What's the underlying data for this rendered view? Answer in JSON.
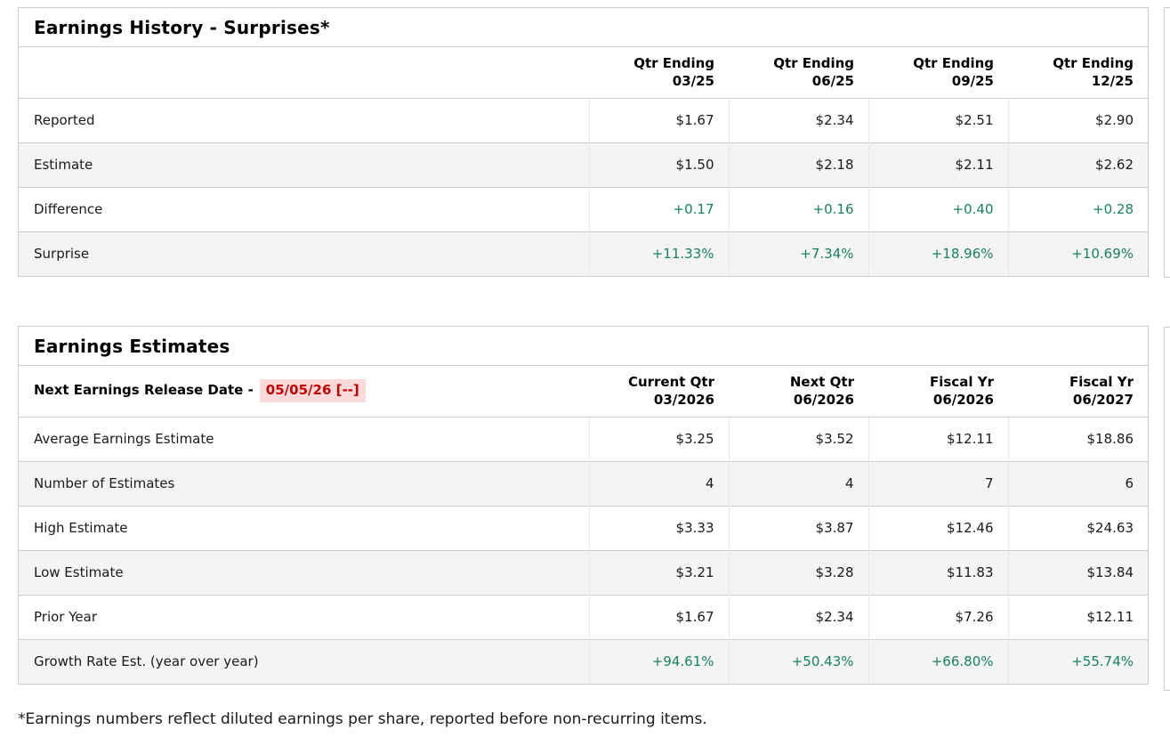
{
  "colors": {
    "positive": "#17805f",
    "alert_text": "#c40000",
    "alert_bg": "#fcdada",
    "stripe": "#f4f4f4",
    "border": "#cccccc"
  },
  "earnings_history": {
    "title": "Earnings History - Surprises*",
    "columns": [
      {
        "line1": "Qtr Ending",
        "line2": "03/25"
      },
      {
        "line1": "Qtr Ending",
        "line2": "06/25"
      },
      {
        "line1": "Qtr Ending",
        "line2": "09/25"
      },
      {
        "line1": "Qtr Ending",
        "line2": "12/25"
      }
    ],
    "rows": [
      {
        "label": "Reported",
        "values": [
          "$1.67",
          "$2.34",
          "$2.51",
          "$2.90"
        ],
        "positive": false
      },
      {
        "label": "Estimate",
        "values": [
          "$1.50",
          "$2.18",
          "$2.11",
          "$2.62"
        ],
        "positive": false
      },
      {
        "label": "Difference",
        "values": [
          "+0.17",
          "+0.16",
          "+0.40",
          "+0.28"
        ],
        "positive": true
      },
      {
        "label": "Surprise",
        "values": [
          "+11.33%",
          "+7.34%",
          "+18.96%",
          "+10.69%"
        ],
        "positive": true
      }
    ]
  },
  "earnings_estimates": {
    "title": "Earnings Estimates",
    "release_date_label": "Next Earnings Release Date -",
    "release_date_value": "05/05/26 [--]",
    "columns": [
      {
        "line1": "Current Qtr",
        "line2": "03/2026"
      },
      {
        "line1": "Next Qtr",
        "line2": "06/2026"
      },
      {
        "line1": "Fiscal Yr",
        "line2": "06/2026"
      },
      {
        "line1": "Fiscal Yr",
        "line2": "06/2027"
      }
    ],
    "rows": [
      {
        "label": "Average Earnings Estimate",
        "values": [
          "$3.25",
          "$3.52",
          "$12.11",
          "$18.86"
        ],
        "positive": false
      },
      {
        "label": "Number of Estimates",
        "values": [
          "4",
          "4",
          "7",
          "6"
        ],
        "positive": false
      },
      {
        "label": "High Estimate",
        "values": [
          "$3.33",
          "$3.87",
          "$12.46",
          "$24.63"
        ],
        "positive": false
      },
      {
        "label": "Low Estimate",
        "values": [
          "$3.21",
          "$3.28",
          "$11.83",
          "$13.84"
        ],
        "positive": false
      },
      {
        "label": "Prior Year",
        "values": [
          "$1.67",
          "$2.34",
          "$7.26",
          "$12.11"
        ],
        "positive": false
      },
      {
        "label": "Growth Rate Est. (year over year)",
        "values": [
          "+94.61%",
          "+50.43%",
          "+66.80%",
          "+55.74%"
        ],
        "positive": true
      }
    ]
  },
  "footnote": "*Earnings numbers reflect diluted earnings per share, reported before non-recurring items."
}
